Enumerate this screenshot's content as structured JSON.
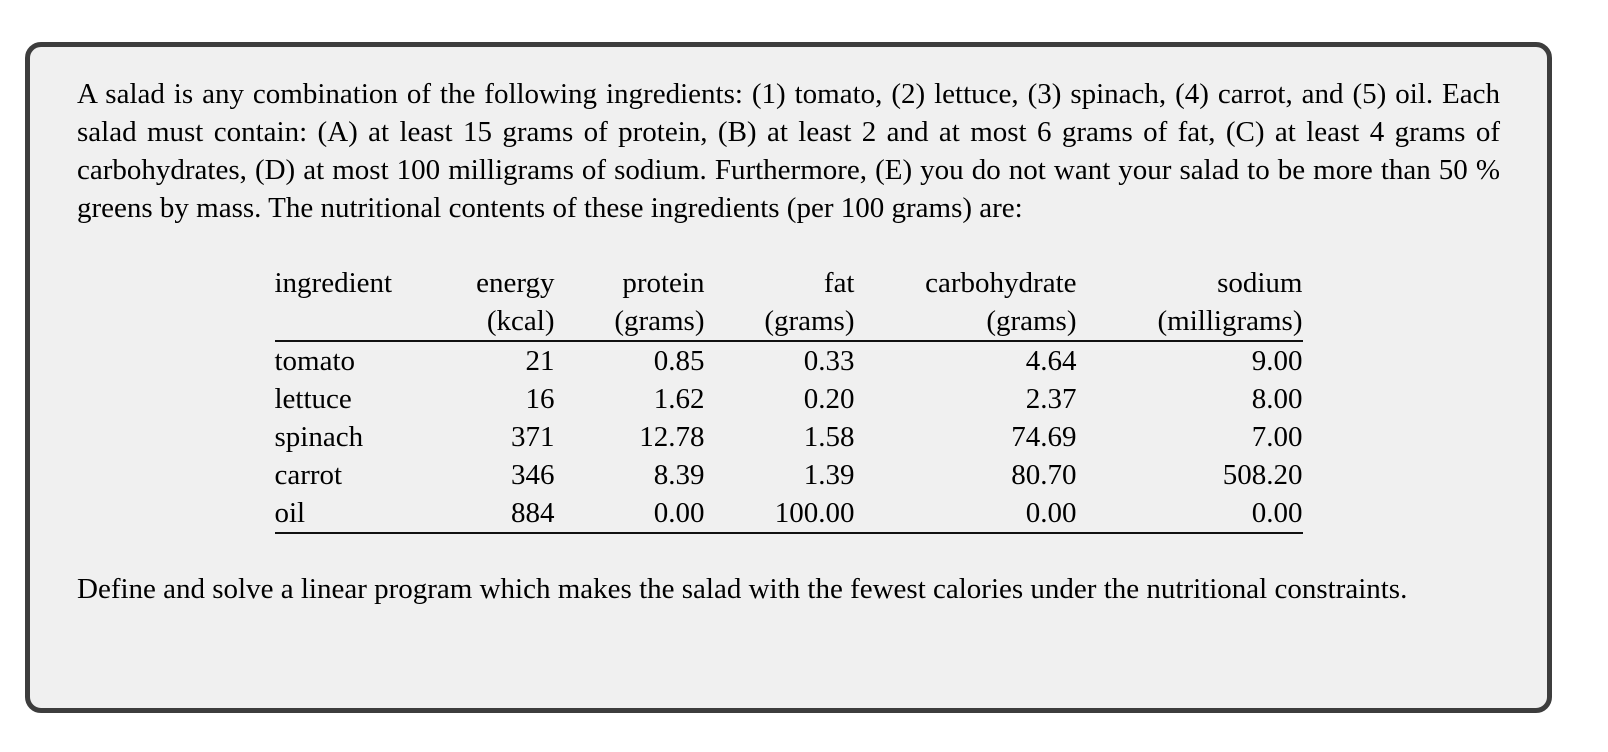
{
  "document": {
    "problem_text": "A salad is any combination of the following ingredients: (1) tomato, (2) lettuce, (3) spinach, (4) carrot, and (5) oil. Each salad must contain: (A) at least 15 grams of protein, (B) at least 2 and at most 6 grams of fat, (C) at least 4 grams of carbohydrates, (D) at most 100 milligrams of sodium. Furthermore, (E) you do not want your salad to be more than 50 % greens by mass. The nutritional contents of these ingredients (per 100 grams) are:",
    "task_text": "Define and solve a linear program which makes the salad with the fewest calories under the nutritional constraints."
  },
  "table": {
    "columns": [
      {
        "label": "ingredient",
        "unit": ""
      },
      {
        "label": "energy",
        "unit": "(kcal)"
      },
      {
        "label": "protein",
        "unit": "(grams)"
      },
      {
        "label": "fat",
        "unit": "(grams)"
      },
      {
        "label": "carbohydrate",
        "unit": "(grams)"
      },
      {
        "label": "sodium",
        "unit": "(milligrams)"
      }
    ],
    "rows": [
      [
        "tomato",
        "21",
        "0.85",
        "0.33",
        "4.64",
        "9.00"
      ],
      [
        "lettuce",
        "16",
        "1.62",
        "0.20",
        "2.37",
        "8.00"
      ],
      [
        "spinach",
        "371",
        "12.78",
        "1.58",
        "74.69",
        "7.00"
      ],
      [
        "carrot",
        "346",
        "8.39",
        "1.39",
        "80.70",
        "508.20"
      ],
      [
        "oil",
        "884",
        "0.00",
        "100.00",
        "0.00",
        "0.00"
      ]
    ]
  },
  "colors": {
    "page_background": "#ffffff",
    "card_background": "#f0f0f0",
    "card_border": "#3d3d3d",
    "text": "#000000"
  }
}
